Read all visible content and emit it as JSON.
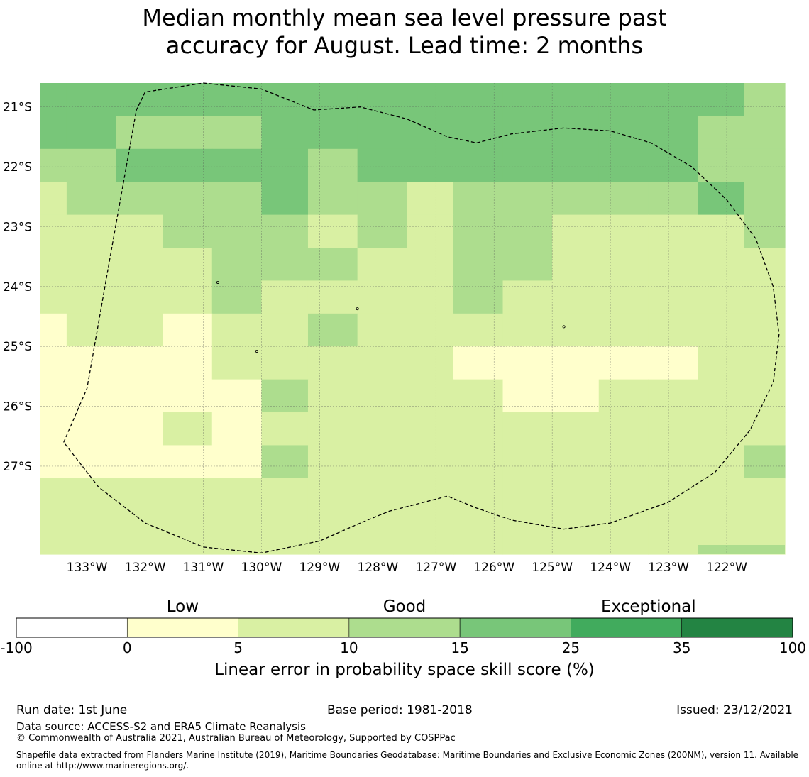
{
  "title_line1": "Median monthly mean sea level pressure past",
  "title_line2": "accuracy for August. Lead time: 2 months",
  "map": {
    "lon_labels": [
      "133°W",
      "132°W",
      "131°W",
      "130°W",
      "129°W",
      "128°W",
      "127°W",
      "126°W",
      "125°W",
      "124°W",
      "123°W",
      "122°W"
    ],
    "lat_labels": [
      "21°S",
      "22°S",
      "23°S",
      "24°S",
      "25°S",
      "26°S",
      "27°S"
    ],
    "category_colors": [
      "#ffffcc",
      "#d9f0a3",
      "#addd8e",
      "#78c679"
    ],
    "grid_cols": [
      -133.8,
      -133.35,
      -132.5,
      -131.7,
      -130.85,
      -130.0,
      -129.2,
      -128.35,
      -127.5,
      -126.7,
      -125.85,
      -125.0,
      -124.2,
      -123.35,
      -122.5,
      -121.7,
      -121.0
    ],
    "grid_rows": [
      -20.6,
      -21.15,
      -21.7,
      -22.25,
      -22.8,
      -23.35,
      -23.9,
      -24.45,
      -25.0,
      -25.55,
      -26.1,
      -26.65,
      -27.2,
      -28.47
    ],
    "grid": [
      [
        3,
        3,
        3,
        3,
        3,
        3,
        3,
        3,
        3,
        3,
        3,
        3,
        3,
        3,
        3,
        2
      ],
      [
        3,
        3,
        2,
        2,
        2,
        3,
        3,
        3,
        3,
        3,
        3,
        3,
        3,
        3,
        2,
        2
      ],
      [
        2,
        2,
        3,
        3,
        3,
        3,
        2,
        3,
        3,
        3,
        3,
        3,
        3,
        3,
        2,
        2
      ],
      [
        1,
        2,
        2,
        2,
        2,
        3,
        2,
        2,
        1,
        2,
        2,
        2,
        2,
        2,
        3,
        2
      ],
      [
        1,
        1,
        1,
        2,
        2,
        2,
        1,
        2,
        1,
        2,
        2,
        1,
        1,
        1,
        1,
        2
      ],
      [
        1,
        1,
        1,
        1,
        2,
        2,
        2,
        1,
        1,
        2,
        2,
        1,
        1,
        1,
        1,
        1
      ],
      [
        1,
        1,
        1,
        1,
        2,
        1,
        1,
        1,
        1,
        2,
        1,
        1,
        1,
        1,
        1,
        1
      ],
      [
        0,
        1,
        1,
        0,
        1,
        1,
        2,
        1,
        1,
        1,
        1,
        1,
        1,
        1,
        1,
        1
      ],
      [
        0,
        0,
        0,
        0,
        1,
        1,
        1,
        1,
        1,
        0,
        0,
        0,
        0,
        0,
        1,
        1
      ],
      [
        0,
        0,
        0,
        0,
        0,
        2,
        1,
        1,
        1,
        1,
        0,
        0,
        1,
        1,
        1,
        1
      ],
      [
        0,
        0,
        0,
        1,
        0,
        1,
        1,
        1,
        1,
        1,
        1,
        1,
        1,
        1,
        1,
        1
      ],
      [
        0,
        0,
        0,
        0,
        0,
        2,
        1,
        1,
        1,
        1,
        1,
        1,
        1,
        1,
        1,
        2
      ],
      [
        1,
        1,
        1,
        1,
        1,
        1,
        1,
        1,
        1,
        1,
        1,
        1,
        1,
        1,
        1,
        1
      ]
    ],
    "boundary": [
      [
        -133.4,
        -26.6
      ],
      [
        -133.0,
        -25.7
      ],
      [
        -132.6,
        -23.5
      ],
      [
        -132.15,
        -21.05
      ],
      [
        -132.0,
        -20.75
      ],
      [
        -131.0,
        -20.6
      ],
      [
        -130.0,
        -20.7
      ],
      [
        -129.1,
        -21.05
      ],
      [
        -128.3,
        -21.0
      ],
      [
        -127.5,
        -21.2
      ],
      [
        -126.8,
        -21.5
      ],
      [
        -126.3,
        -21.6
      ],
      [
        -125.7,
        -21.45
      ],
      [
        -124.8,
        -21.35
      ],
      [
        -124.0,
        -21.4
      ],
      [
        -123.3,
        -21.6
      ],
      [
        -122.6,
        -22.0
      ],
      [
        -122.0,
        -22.55
      ],
      [
        -121.5,
        -23.2
      ],
      [
        -121.2,
        -24.0
      ],
      [
        -121.1,
        -24.8
      ],
      [
        -121.2,
        -25.6
      ],
      [
        -121.6,
        -26.4
      ],
      [
        -122.2,
        -27.1
      ],
      [
        -123.0,
        -27.6
      ],
      [
        -124.0,
        -27.95
      ],
      [
        -124.8,
        -28.05
      ],
      [
        -125.7,
        -27.9
      ],
      [
        -126.3,
        -27.7
      ],
      [
        -126.8,
        -27.5
      ],
      [
        -127.8,
        -27.75
      ],
      [
        -128.3,
        -27.95
      ],
      [
        -129.0,
        -28.25
      ],
      [
        -130.0,
        -28.45
      ],
      [
        -131.0,
        -28.35
      ],
      [
        -132.0,
        -27.95
      ],
      [
        -132.8,
        -27.35
      ],
      [
        -133.4,
        -26.6
      ]
    ],
    "islands": [
      [
        -130.75,
        -23.93
      ],
      [
        -128.35,
        -24.37
      ],
      [
        -124.8,
        -24.67
      ],
      [
        -130.08,
        -25.08
      ]
    ]
  },
  "colorbar": {
    "labels": [
      {
        "text": "Low",
        "value": 2.5
      },
      {
        "text": "Good",
        "value": 12.5
      },
      {
        "text": "Exceptional",
        "value": 32
      }
    ],
    "bounds": [
      -100,
      0,
      5,
      10,
      15,
      25,
      35,
      100
    ],
    "colors": [
      "#ffffff",
      "#ffffcc",
      "#d9f0a3",
      "#addd8e",
      "#78c679",
      "#41ab5d",
      "#238443"
    ],
    "tick_labels": [
      "-100",
      "0",
      "5",
      "10",
      "15",
      "25",
      "35",
      "100"
    ],
    "title": "Linear error in probability space skill score (%)"
  },
  "footer": {
    "run_date": "Run date: 1st June",
    "base_period": "Base period: 1981-2018",
    "issued": "Issued: 23/12/2021",
    "data_source": "Data source: ACCESS-S2 and ERA5 Climate Reanalysis",
    "copyright": "© Commonwealth of Australia 2021, Australian Bureau of Meteorology, Supported by COSPPac",
    "shapefile_line1": "Shapefile data extracted from Flanders Marine Institute (2019), Maritime Boundaries Geodatabase: Maritime Boundaries and Exclusive Economic Zones (200NM), version 11. Available",
    "shapefile_line2": "online at http://www.marineregions.org/."
  }
}
